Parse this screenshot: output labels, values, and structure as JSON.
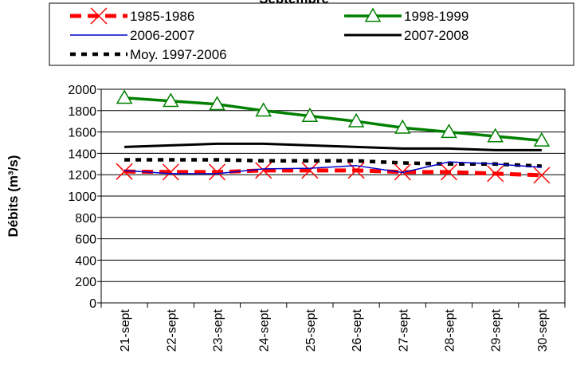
{
  "chart_data": {
    "type": "line",
    "title": "Septembre",
    "xlabel": "",
    "ylabel": "Débits (m³/s)",
    "ylim": [
      0,
      2000
    ],
    "ytick_step": 200,
    "grid": "horizontal",
    "legend_position": "top",
    "categories": [
      "21-sept",
      "22-sept",
      "23-sept",
      "24-sept",
      "25-sept",
      "26-sept",
      "27-sept",
      "28-sept",
      "29-sept",
      "30-sept"
    ],
    "series": [
      {
        "name": "1985-1986",
        "color": "#ff0000",
        "style": "dashed-x",
        "values": [
          1230,
          1225,
          1225,
          1240,
          1240,
          1240,
          1225,
          1225,
          1210,
          1195
        ]
      },
      {
        "name": "1998-1999",
        "color": "#008000",
        "style": "solid-triangle",
        "values": [
          1920,
          1890,
          1860,
          1800,
          1750,
          1700,
          1640,
          1600,
          1560,
          1520
        ]
      },
      {
        "name": "2006-2007",
        "color": "#0000cc",
        "style": "thin-solid",
        "values": [
          1240,
          1210,
          1210,
          1255,
          1260,
          1285,
          1220,
          1320,
          1300,
          1270
        ]
      },
      {
        "name": "2007-2008",
        "color": "#000000",
        "style": "thick-solid",
        "values": [
          1460,
          1475,
          1490,
          1490,
          1475,
          1460,
          1445,
          1445,
          1430,
          1430
        ]
      },
      {
        "name": "Moy. 1997-2006",
        "color": "#000000",
        "style": "dotted",
        "values": [
          1340,
          1340,
          1340,
          1330,
          1330,
          1330,
          1310,
          1300,
          1300,
          1280
        ]
      }
    ]
  }
}
